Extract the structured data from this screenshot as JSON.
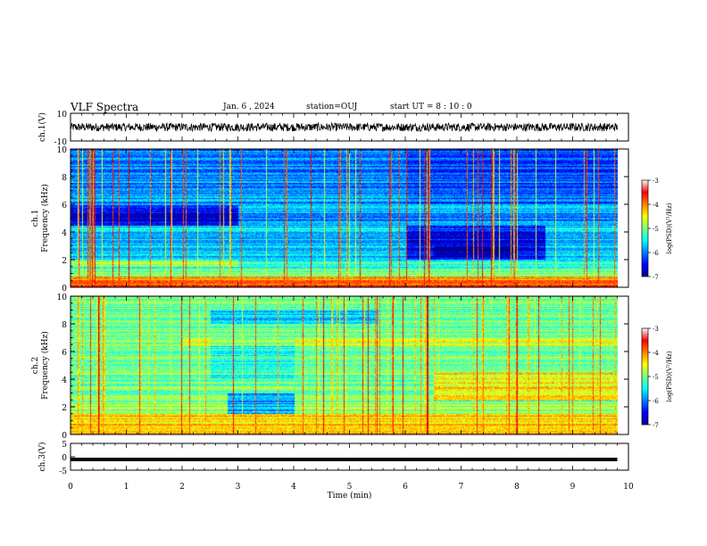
{
  "header": {
    "title": "VLF Spectra",
    "date": "Jan. 6 , 2024",
    "station": "station=OUJ",
    "start": "start UT =  8 : 10 : 0"
  },
  "chart_data": [
    {
      "type": "line",
      "title": "",
      "ylabel": "ch.1(V)",
      "xlim": [
        0,
        10
      ],
      "ylim": [
        -10,
        10
      ],
      "ticks": [
        "10",
        "-10"
      ],
      "series": [
        {
          "values_range": [
            -3,
            3
          ]
        }
      ]
    },
    {
      "type": "heatmap",
      "ylabel_channel": "ch.1",
      "ylabel": "Frequency (kHz)",
      "xlim": [
        0,
        10
      ],
      "ylim": [
        0,
        10
      ],
      "yticks": [
        "0",
        "2",
        "4",
        "6",
        "8",
        "10"
      ],
      "colorbar": {
        "label": "log(PSD)(V²/Hz)",
        "range": [
          -7,
          -3
        ],
        "ticks": [
          "-3",
          "-4",
          "-5",
          "-6",
          "-7"
        ]
      }
    },
    {
      "type": "heatmap",
      "ylabel_channel": "ch.2",
      "ylabel": "Frequency (kHz)",
      "xlim": [
        0,
        10
      ],
      "ylim": [
        0,
        10
      ],
      "yticks": [
        "0",
        "2",
        "4",
        "6",
        "8",
        "10"
      ],
      "colorbar": {
        "label": "log(PSD)(V²/Hz)",
        "range": [
          -7,
          -3
        ],
        "ticks": [
          "-3",
          "-4",
          "-5",
          "-6",
          "-7"
        ]
      }
    },
    {
      "type": "line",
      "ylabel": "ch.3(V)",
      "xlim": [
        0,
        10
      ],
      "ylim": [
        -5,
        5
      ],
      "ticks": [
        "5",
        "0",
        "-5"
      ],
      "series": [
        {
          "values": [
            -1,
            -1
          ]
        }
      ]
    }
  ],
  "xaxis": {
    "label": "Time (min)",
    "ticks": [
      "0",
      "1",
      "2",
      "3",
      "4",
      "5",
      "6",
      "7",
      "8",
      "9",
      "10"
    ],
    "data_end": 9.8
  }
}
